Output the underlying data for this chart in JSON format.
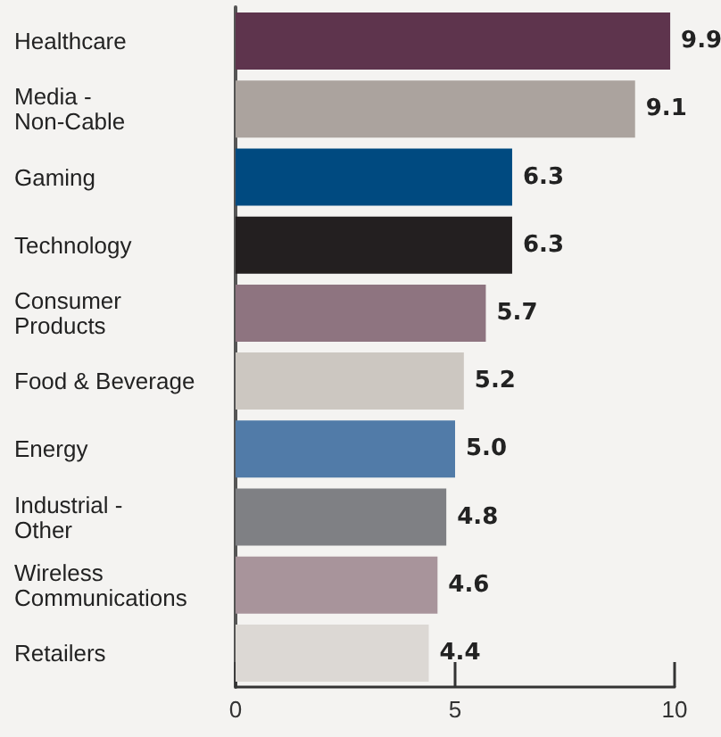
{
  "chart_data": {
    "type": "bar",
    "orientation": "horizontal",
    "categories": [
      "Healthcare",
      "Media -\nNon-Cable",
      "Gaming",
      "Technology",
      "Consumer\nProducts",
      "Food & Beverage",
      "Energy",
      "Industrial -\nOther",
      "Wireless\nCommunications",
      "Retailers"
    ],
    "values": [
      9.9,
      9.1,
      6.3,
      6.3,
      5.7,
      5.2,
      5.0,
      4.8,
      4.6,
      4.4
    ],
    "colors": [
      "#5e344d",
      "#aba39e",
      "#004a80",
      "#231f20",
      "#8e7480",
      "#ccc7c1",
      "#517ba8",
      "#7f8084",
      "#a8949b",
      "#dcd8d4"
    ],
    "value_labels": [
      "9.9",
      "9.1",
      "6.3",
      "6.3",
      "5.7",
      "5.2",
      "5.0",
      "4.8",
      "4.6",
      "4.4"
    ],
    "xlim": [
      0,
      10
    ],
    "xticks": [
      0,
      5,
      10
    ],
    "grid": false
  }
}
